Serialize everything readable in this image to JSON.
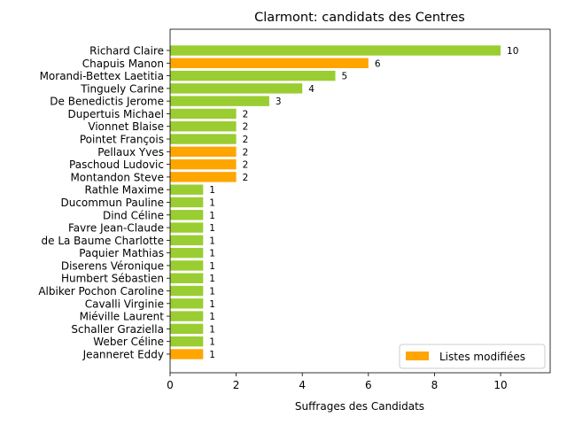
{
  "chart_data": {
    "type": "bar",
    "orientation": "horizontal",
    "title": "Clarmont: candidats des Centres",
    "xlabel": "Suffrages des Candidats",
    "ylabel": "",
    "xlim": [
      0,
      11.5
    ],
    "xticks": [
      0,
      2,
      4,
      6,
      8,
      10
    ],
    "grid": false,
    "legend": {
      "placement": "lower-right",
      "entries": [
        {
          "label": "Listes modifiées",
          "color": "#ffa500"
        }
      ]
    },
    "colors": {
      "default": "#9acd32",
      "modified": "#ffa500"
    },
    "categories": [
      "Richard Claire",
      "Chapuis Manon",
      "Morandi-Bettex Laetitia",
      "Tinguely Carine",
      "De Benedictis Jerome",
      "Dupertuis Michael",
      "Vionnet Blaise",
      "Pointet François",
      "Pellaux Yves",
      "Paschoud Ludovic",
      "Montandon Steve",
      "Rathle Maxime",
      "Ducommun Pauline",
      "Dind Céline",
      "Favre Jean-Claude",
      "de La Baume Charlotte",
      "Paquier Mathias",
      "Diserens Véronique",
      "Humbert Sébastien",
      "Albiker Pochon Caroline",
      "Cavalli Virginie",
      "Miéville Laurent",
      "Schaller Graziella",
      "Weber Céline",
      "Jeanneret Eddy"
    ],
    "values": [
      10,
      6,
      5,
      4,
      3,
      2,
      2,
      2,
      2,
      2,
      2,
      1,
      1,
      1,
      1,
      1,
      1,
      1,
      1,
      1,
      1,
      1,
      1,
      1,
      1
    ],
    "modified": [
      false,
      true,
      false,
      false,
      false,
      false,
      false,
      false,
      true,
      true,
      true,
      false,
      false,
      false,
      false,
      false,
      false,
      false,
      false,
      false,
      false,
      false,
      false,
      false,
      true
    ]
  }
}
